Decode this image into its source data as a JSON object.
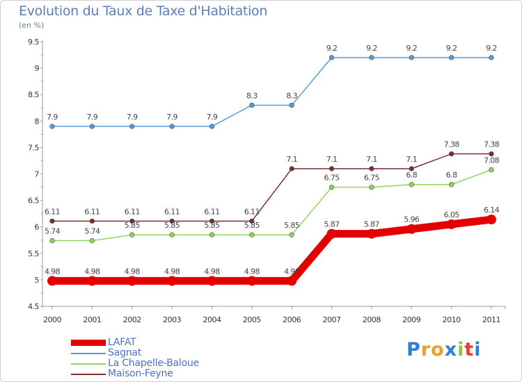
{
  "header": {
    "title": "Evolution du Taux de Taxe d'Habitation",
    "subtitle": "(en %)"
  },
  "chart_data": {
    "type": "line",
    "title": "Evolution du Taux de Taxe d'Habitation",
    "ylabel": "(en %)",
    "xlabel": "",
    "grid": false,
    "legend_position": "bottom-left",
    "ylim": [
      4.5,
      9.5
    ],
    "yticks": [
      "4.5",
      "5",
      "5.5",
      "6",
      "6.5",
      "7",
      "7.5",
      "8",
      "8.5",
      "9",
      "9.5"
    ],
    "categories": [
      "2000",
      "2001",
      "2002",
      "2003",
      "2004",
      "2005",
      "2006",
      "2007",
      "2008",
      "2009",
      "2010",
      "2011"
    ],
    "series": [
      {
        "name": "LAFAT",
        "color": "#e30000",
        "values": [
          4.98,
          4.98,
          4.98,
          4.98,
          4.98,
          4.98,
          4.98,
          5.87,
          5.87,
          5.96,
          6.05,
          6.14
        ],
        "labels": [
          "4.98",
          "4.98",
          "4.98",
          "4.98",
          "4.98",
          "4.98",
          "4.98",
          "5.87",
          "5.87",
          "5.96",
          "6.05",
          "6.14"
        ]
      },
      {
        "name": "Sagnat",
        "color": "#5b9bd5",
        "values": [
          7.9,
          7.9,
          7.9,
          7.9,
          7.9,
          8.3,
          8.3,
          9.2,
          9.2,
          9.2,
          9.2,
          9.2
        ],
        "labels": [
          "7.9",
          "7.9",
          "7.9",
          "7.9",
          "7.9",
          "8.3",
          "8.3",
          "9.2",
          "9.2",
          "9.2",
          "9.2",
          "9.2"
        ]
      },
      {
        "name": "La Chapelle-Baloue",
        "color": "#8fd65a",
        "values": [
          5.74,
          5.74,
          5.85,
          5.85,
          5.85,
          5.85,
          5.85,
          6.75,
          6.75,
          6.8,
          6.8,
          7.08
        ],
        "labels": [
          "5.74",
          "5.74",
          "5.85",
          "5.85",
          "5.85",
          "5.85",
          "5.85",
          "6.75",
          "6.75",
          "6.8",
          "6.8",
          "7.08"
        ]
      },
      {
        "name": "Maison-Feyne",
        "color": "#7a2e2e",
        "values": [
          6.11,
          6.11,
          6.11,
          6.11,
          6.11,
          6.11,
          7.1,
          7.1,
          7.1,
          7.1,
          7.38,
          7.38
        ],
        "labels": [
          "6.11",
          "6.11",
          "6.11",
          "6.11",
          "6.11",
          "6.11",
          "7.1",
          "7.1",
          "7.1",
          "7.1",
          "7.38",
          "7.38"
        ]
      }
    ]
  },
  "logo": {
    "letters": [
      "P",
      "r",
      "o",
      "x",
      "i",
      "t",
      "i"
    ],
    "colors": [
      "#2e7fd4",
      "#f0a020",
      "#f0a020",
      "#2e7fd4",
      "#8cc63f",
      "#e8402a",
      "#2e7fd4"
    ]
  }
}
